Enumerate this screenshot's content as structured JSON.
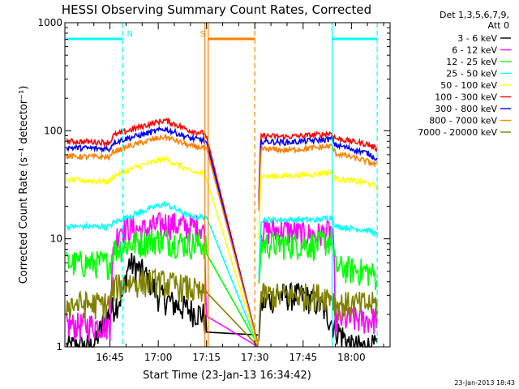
{
  "chart_data": {
    "type": "line",
    "title": "HESSI Observing Summary Count Rates, Corrected",
    "xlabel": "Start Time (23-Jan-13 16:34:42)",
    "ylabel": "Corrected Count Rate (s⁻¹ detector⁻¹)",
    "ylog": true,
    "ylim": [
      1,
      1000
    ],
    "xlim_minutes": [
      16.0,
      117.0
    ],
    "x_ticks": [
      {
        "label": "16:45",
        "t": 30
      },
      {
        "label": "17:00",
        "t": 45
      },
      {
        "label": "17:15",
        "t": 60
      },
      {
        "label": "17:30",
        "t": 75
      },
      {
        "label": "17:45",
        "t": 90
      },
      {
        "label": "18:00",
        "t": 105
      }
    ],
    "y_ticks": [
      {
        "label": "1",
        "v": 1
      },
      {
        "label": "10",
        "v": 10
      },
      {
        "label": "100",
        "v": 100
      },
      {
        "label": "1000",
        "v": 1000
      }
    ],
    "legend_header": [
      "Det 1,3,5,6,7,9,",
      "Att 0"
    ],
    "legend_placement": "right",
    "timestamp": "23-Jan-2013 18:43",
    "series": [
      {
        "name": "3 - 6 keV",
        "color": "#000000",
        "points": [
          [
            16.5,
            1
          ],
          [
            25,
            1
          ],
          [
            34,
            3
          ],
          [
            36,
            6
          ],
          [
            40,
            5
          ],
          [
            45,
            3
          ],
          [
            50,
            2.5
          ],
          [
            55,
            2.2
          ],
          [
            59,
            2
          ],
          [
            61,
            1
          ],
          [
            76,
            1
          ],
          [
            77,
            2.5
          ],
          [
            82,
            3
          ],
          [
            90,
            3
          ],
          [
            95,
            2.5
          ],
          [
            100,
            1.5
          ],
          [
            105,
            1
          ],
          [
            113,
            1
          ]
        ]
      },
      {
        "name": "6 - 12 keV",
        "color": "#ff00ff",
        "points": [
          [
            16.5,
            1.6
          ],
          [
            30,
            1.6
          ],
          [
            31,
            7
          ],
          [
            33,
            13
          ],
          [
            40,
            12
          ],
          [
            47,
            14
          ],
          [
            55,
            13
          ],
          [
            59,
            13
          ],
          [
            60,
            1.6
          ],
          [
            76,
            1
          ],
          [
            77,
            12
          ],
          [
            85,
            12
          ],
          [
            90,
            11
          ],
          [
            95,
            11
          ],
          [
            99,
            12
          ],
          [
            100,
            1.8
          ],
          [
            112,
            1.8
          ],
          [
            113,
            2
          ]
        ]
      },
      {
        "name": "12 - 25 keV",
        "color": "#00ff00",
        "points": [
          [
            16.5,
            6
          ],
          [
            30,
            6
          ],
          [
            31,
            8
          ],
          [
            36,
            9
          ],
          [
            45,
            10
          ],
          [
            55,
            9
          ],
          [
            59,
            9
          ],
          [
            76,
            1
          ],
          [
            77,
            9
          ],
          [
            85,
            9
          ],
          [
            90,
            9
          ],
          [
            95,
            9
          ],
          [
            99,
            10
          ],
          [
            100,
            5.5
          ],
          [
            110,
            5
          ],
          [
            113,
            4.5
          ]
        ]
      },
      {
        "name": "25 - 50 keV",
        "color": "#00ffff",
        "points": [
          [
            16.5,
            13
          ],
          [
            30,
            13
          ],
          [
            31,
            14
          ],
          [
            40,
            18
          ],
          [
            47,
            21
          ],
          [
            55,
            16
          ],
          [
            59,
            16
          ],
          [
            76,
            1
          ],
          [
            77,
            15
          ],
          [
            85,
            15
          ],
          [
            95,
            15
          ],
          [
            99,
            16
          ],
          [
            100,
            13
          ],
          [
            110,
            12
          ],
          [
            113,
            11
          ]
        ]
      },
      {
        "name": "50 - 100 keV",
        "color": "#ffff00",
        "points": [
          [
            16.5,
            35
          ],
          [
            30,
            34
          ],
          [
            31,
            38
          ],
          [
            40,
            48
          ],
          [
            47,
            55
          ],
          [
            55,
            42
          ],
          [
            59,
            40
          ],
          [
            76,
            1
          ],
          [
            77,
            38
          ],
          [
            85,
            38
          ],
          [
            95,
            40
          ],
          [
            99,
            42
          ],
          [
            100,
            36
          ],
          [
            110,
            33
          ],
          [
            113,
            30
          ]
        ]
      },
      {
        "name": "100 - 300 keV",
        "color": "#ff0000",
        "points": [
          [
            16.5,
            80
          ],
          [
            30,
            78
          ],
          [
            31,
            90
          ],
          [
            40,
            110
          ],
          [
            47,
            125
          ],
          [
            55,
            100
          ],
          [
            59,
            95
          ],
          [
            76,
            1
          ],
          [
            77,
            90
          ],
          [
            85,
            88
          ],
          [
            95,
            92
          ],
          [
            99,
            95
          ],
          [
            100,
            85
          ],
          [
            110,
            75
          ],
          [
            113,
            68
          ]
        ]
      },
      {
        "name": "300 - 800 keV",
        "color": "#0000ff",
        "points": [
          [
            16.5,
            70
          ],
          [
            30,
            68
          ],
          [
            31,
            78
          ],
          [
            40,
            92
          ],
          [
            47,
            104
          ],
          [
            55,
            85
          ],
          [
            59,
            82
          ],
          [
            76,
            1
          ],
          [
            77,
            80
          ],
          [
            85,
            78
          ],
          [
            95,
            82
          ],
          [
            99,
            84
          ],
          [
            100,
            74
          ],
          [
            110,
            62
          ],
          [
            113,
            55
          ]
        ]
      },
      {
        "name": "800 - 7000 keV",
        "color": "#ff8000",
        "points": [
          [
            16.5,
            58
          ],
          [
            30,
            57
          ],
          [
            31,
            64
          ],
          [
            40,
            78
          ],
          [
            47,
            88
          ],
          [
            55,
            72
          ],
          [
            59,
            70
          ],
          [
            76,
            1
          ],
          [
            77,
            68
          ],
          [
            85,
            66
          ],
          [
            95,
            70
          ],
          [
            99,
            72
          ],
          [
            100,
            62
          ],
          [
            110,
            52
          ],
          [
            113,
            48
          ]
        ]
      },
      {
        "name": "7000 - 20000 keV",
        "color": "#808000",
        "points": [
          [
            16.5,
            2.5
          ],
          [
            30,
            2.5
          ],
          [
            31,
            3.5
          ],
          [
            36,
            4
          ],
          [
            45,
            4
          ],
          [
            55,
            3.5
          ],
          [
            59,
            3
          ],
          [
            76,
            1
          ],
          [
            77,
            3
          ],
          [
            85,
            3
          ],
          [
            95,
            3
          ],
          [
            99,
            3
          ],
          [
            100,
            2.5
          ],
          [
            110,
            2.5
          ],
          [
            113,
            2.5
          ]
        ]
      }
    ],
    "flags": [
      {
        "label": "N",
        "color": "#00ffff",
        "t_start": 16.5,
        "t_end": 34.0
      },
      {
        "label": "",
        "color": "#00ffff",
        "t_start": 99.0,
        "t_end": 113.0
      },
      {
        "label": "S",
        "color": "#ff8000",
        "t_start": 60.5,
        "t_end": 75.0
      }
    ],
    "vlines": [
      {
        "t": 34.0,
        "color": "#00ffff",
        "dashed": true
      },
      {
        "t": 99.0,
        "color": "#00ffff",
        "dashed": false
      },
      {
        "t": 113.0,
        "color": "#00ffff",
        "dashed": true
      },
      {
        "t": 59.5,
        "color": "#ff8000",
        "dashed": false
      },
      {
        "t": 60.5,
        "color": "#ff8000",
        "dashed": false
      },
      {
        "t": 75.0,
        "color": "#ff8000",
        "dashed": true
      }
    ]
  }
}
